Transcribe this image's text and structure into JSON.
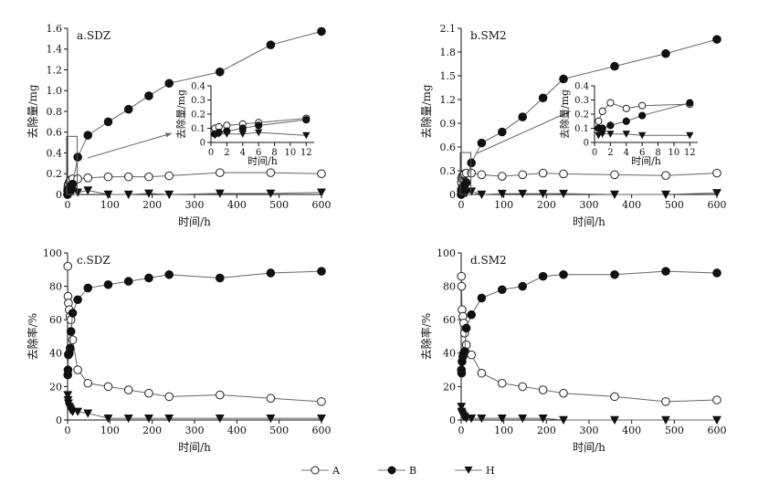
{
  "chart_data": [
    {
      "id": "a",
      "type": "line",
      "panel_label": "a.SDZ",
      "xlabel": "时间/h",
      "ylabel": "去除量/mg",
      "xlim": [
        0,
        600
      ],
      "ylim": [
        0,
        1.6
      ],
      "xticks": [
        "0",
        "100",
        "200",
        "300",
        "400",
        "500",
        "600"
      ],
      "yticks": [
        "0",
        "0.2",
        "0.4",
        "0.6",
        "0.8",
        "1.0",
        "1.2",
        "1.4",
        "1.6"
      ],
      "grid": false,
      "series": [
        {
          "name": "A",
          "x": [
            0,
            0.5,
            1,
            2,
            4,
            6,
            8,
            12,
            24,
            48,
            96,
            144,
            192,
            240,
            360,
            480,
            600
          ],
          "y": [
            0,
            0.05,
            0.08,
            0.1,
            0.12,
            0.13,
            0.14,
            0.15,
            0.15,
            0.16,
            0.17,
            0.17,
            0.17,
            0.18,
            0.21,
            0.21,
            0.2
          ]
        },
        {
          "name": "B",
          "x": [
            0,
            0.5,
            1,
            2,
            4,
            6,
            8,
            12,
            24,
            48,
            96,
            144,
            192,
            240,
            360,
            480,
            600
          ],
          "y": [
            0,
            0.03,
            0.04,
            0.05,
            0.06,
            0.07,
            0.08,
            0.1,
            0.36,
            0.57,
            0.7,
            0.82,
            0.95,
            1.07,
            1.18,
            1.44,
            1.57
          ]
        },
        {
          "name": "H",
          "x": [
            0,
            0.5,
            1,
            2,
            4,
            6,
            8,
            12,
            24,
            48,
            96,
            144,
            192,
            240,
            360,
            480,
            600
          ],
          "y": [
            0,
            0.02,
            0.03,
            0.03,
            0.03,
            0.03,
            0.03,
            0.03,
            0.02,
            0.04,
            0.0,
            0.0,
            0.01,
            0.0,
            0.01,
            0.01,
            0.02
          ]
        }
      ],
      "inset": {
        "xlabel": "时间/h",
        "ylabel": "去除量/mg",
        "xlim": [
          0,
          13
        ],
        "ylim": [
          0,
          0.4
        ],
        "xticks": [
          "0",
          "2",
          "4",
          "6",
          "8",
          "10",
          "12"
        ],
        "yticks": [
          "0",
          "0.1",
          "0.2",
          "0.3",
          "0.4"
        ],
        "series": [
          {
            "name": "A",
            "x": [
              0.5,
              1,
              2,
              4,
              6,
              12
            ],
            "y": [
              0.1,
              0.11,
              0.12,
              0.13,
              0.14,
              0.17
            ]
          },
          {
            "name": "B",
            "x": [
              0.5,
              1,
              2,
              4,
              6,
              12
            ],
            "y": [
              0.06,
              0.07,
              0.08,
              0.1,
              0.12,
              0.16
            ]
          },
          {
            "name": "H",
            "x": [
              0.5,
              1,
              2,
              4,
              6,
              12
            ],
            "y": [
              0.05,
              0.06,
              0.06,
              0.06,
              0.07,
              0.05
            ]
          }
        ]
      }
    },
    {
      "id": "b",
      "type": "line",
      "panel_label": "b.SM2",
      "xlabel": "时间/h",
      "ylabel": "去除量/mg",
      "xlim": [
        0,
        600
      ],
      "ylim": [
        0,
        2.1
      ],
      "xticks": [
        "0",
        "100",
        "200",
        "300",
        "400",
        "500",
        "600"
      ],
      "yticks": [
        "0",
        "0.3",
        "0.6",
        "0.9",
        "1.2",
        "1.5",
        "1.8",
        "2.1"
      ],
      "grid": false,
      "series": [
        {
          "name": "A",
          "x": [
            0,
            0.5,
            1,
            2,
            4,
            6,
            8,
            12,
            24,
            48,
            96,
            144,
            192,
            240,
            360,
            480,
            600
          ],
          "y": [
            0,
            0.15,
            0.2,
            0.22,
            0.24,
            0.25,
            0.26,
            0.27,
            0.27,
            0.25,
            0.23,
            0.25,
            0.27,
            0.26,
            0.25,
            0.24,
            0.27
          ]
        },
        {
          "name": "B",
          "x": [
            0,
            0.5,
            1,
            2,
            4,
            6,
            8,
            12,
            24,
            48,
            96,
            144,
            192,
            240,
            360,
            480,
            600
          ],
          "y": [
            0,
            0.04,
            0.06,
            0.08,
            0.1,
            0.11,
            0.12,
            0.15,
            0.4,
            0.65,
            0.79,
            0.98,
            1.22,
            1.46,
            1.62,
            1.78,
            1.96
          ]
        },
        {
          "name": "H",
          "x": [
            0,
            0.5,
            1,
            2,
            4,
            6,
            8,
            12,
            24,
            48,
            96,
            144,
            192,
            240,
            360,
            480,
            600
          ],
          "y": [
            0,
            0.03,
            0.03,
            0.03,
            0.03,
            0.02,
            0.02,
            0.02,
            0.04,
            0.0,
            0.01,
            0.01,
            0.01,
            0.01,
            0.0,
            0.0,
            0.02
          ]
        }
      ],
      "inset": {
        "xlabel": "时间/h",
        "ylabel": "去除量/mg",
        "xlim": [
          0,
          13
        ],
        "ylim": [
          0,
          0.4
        ],
        "xticks": [
          "0",
          "2",
          "4",
          "6",
          "8",
          "10",
          "12"
        ],
        "yticks": [
          "0",
          "0.1",
          "0.2",
          "0.3",
          "0.4"
        ],
        "series": [
          {
            "name": "A",
            "x": [
              0.5,
              1,
              2,
              4,
              6,
              12
            ],
            "y": [
              0.15,
              0.22,
              0.28,
              0.24,
              0.26,
              0.27
            ]
          },
          {
            "name": "B",
            "x": [
              0.5,
              1,
              2,
              4,
              6,
              12
            ],
            "y": [
              0.1,
              0.1,
              0.12,
              0.15,
              0.19,
              0.28
            ]
          },
          {
            "name": "H",
            "x": [
              0.5,
              1,
              2,
              4,
              6,
              12
            ],
            "y": [
              0.05,
              0.06,
              0.06,
              0.06,
              0.05,
              0.05
            ]
          }
        ]
      }
    },
    {
      "id": "c",
      "type": "line",
      "panel_label": "c.SDZ",
      "xlabel": "时间/h",
      "ylabel": "去除率/%",
      "xlim": [
        0,
        600
      ],
      "ylim": [
        0,
        100
      ],
      "xticks": [
        "0",
        "100",
        "200",
        "300",
        "400",
        "500",
        "600"
      ],
      "yticks": [
        "0",
        "20",
        "40",
        "60",
        "80",
        "100"
      ],
      "grid": false,
      "series": [
        {
          "name": "A",
          "x": [
            0.5,
            1,
            2,
            4,
            6,
            8,
            12,
            24,
            48,
            96,
            144,
            192,
            240,
            360,
            480,
            600
          ],
          "y": [
            92,
            74,
            70,
            66,
            62,
            60,
            48,
            30,
            22,
            20,
            18,
            16,
            14,
            15,
            13,
            11
          ]
        },
        {
          "name": "B",
          "x": [
            0.5,
            1,
            2,
            4,
            6,
            8,
            12,
            24,
            48,
            96,
            144,
            192,
            240,
            360,
            480,
            600
          ],
          "y": [
            27,
            30,
            39,
            40,
            43,
            53,
            64,
            72,
            79,
            81,
            83,
            85,
            87,
            85,
            88,
            89
          ]
        },
        {
          "name": "H",
          "x": [
            0.5,
            1,
            2,
            4,
            6,
            8,
            12,
            24,
            48,
            96,
            144,
            192,
            240,
            360,
            480,
            600
          ],
          "y": [
            15,
            12,
            10,
            8,
            7,
            6,
            5,
            5,
            4,
            1,
            1,
            1,
            1,
            1,
            1,
            1
          ]
        }
      ]
    },
    {
      "id": "d",
      "type": "line",
      "panel_label": "d.SM2",
      "xlabel": "时间/h",
      "ylabel": "去除率/%",
      "xlim": [
        0,
        600
      ],
      "ylim": [
        0,
        100
      ],
      "xticks": [
        "0",
        "100",
        "200",
        "300",
        "400",
        "500",
        "600"
      ],
      "yticks": [
        "0",
        "20",
        "40",
        "60",
        "80",
        "100"
      ],
      "grid": false,
      "series": [
        {
          "name": "A",
          "x": [
            0.5,
            1,
            2,
            4,
            6,
            8,
            12,
            24,
            48,
            96,
            144,
            192,
            240,
            360,
            480,
            600
          ],
          "y": [
            86,
            80,
            66,
            62,
            58,
            52,
            45,
            39,
            28,
            22,
            20,
            18,
            16,
            14,
            11,
            12
          ]
        },
        {
          "name": "B",
          "x": [
            0.5,
            1,
            2,
            4,
            6,
            8,
            12,
            24,
            48,
            96,
            144,
            192,
            240,
            360,
            480,
            600
          ],
          "y": [
            30,
            28,
            35,
            38,
            40,
            41,
            55,
            63,
            73,
            78,
            80,
            86,
            87,
            87,
            89,
            88
          ]
        },
        {
          "name": "H",
          "x": [
            0.5,
            1,
            2,
            4,
            6,
            8,
            12,
            24,
            48,
            96,
            144,
            192,
            240,
            360,
            480,
            600
          ],
          "y": [
            8,
            5,
            4,
            3,
            2,
            2,
            1,
            1,
            1,
            1,
            1,
            1,
            0,
            0,
            0,
            0
          ]
        }
      ]
    }
  ],
  "legend": {
    "placement": "bottom",
    "items": [
      {
        "name": "A",
        "marker": "open-circle"
      },
      {
        "name": "B",
        "marker": "filled-circle"
      },
      {
        "name": "H",
        "marker": "filled-triangle-down"
      }
    ]
  }
}
